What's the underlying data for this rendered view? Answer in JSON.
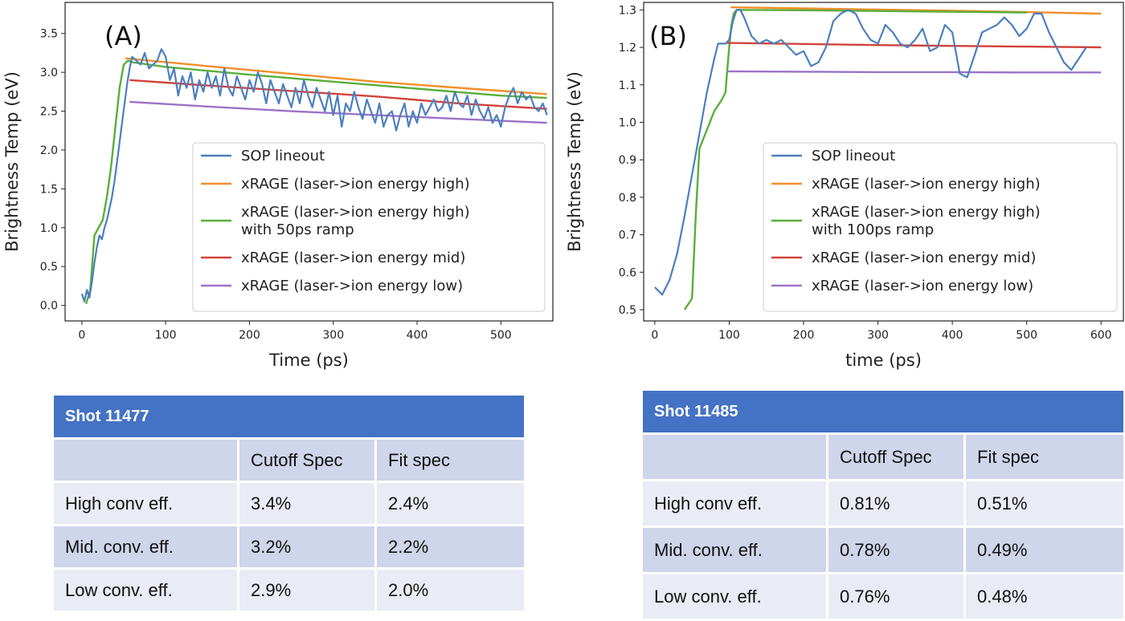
{
  "chart_data": [
    {
      "type": "line",
      "panel_label": "(A)",
      "xlabel": "Time (ps)",
      "ylabel": "Brightness Temp (eV)",
      "xlim": [
        -20,
        562
      ],
      "ylim": [
        -0.2,
        3.9
      ],
      "xticks": [
        0,
        100,
        200,
        300,
        400,
        500
      ],
      "yticks": [
        0.0,
        0.5,
        1.0,
        1.5,
        2.0,
        2.5,
        3.0,
        3.5
      ],
      "ytick_labels": [
        "0.0",
        "0.5",
        "1.0",
        "1.5",
        "2.0",
        "2.5",
        "3.0",
        "3.5"
      ],
      "legend_position": "lower-right",
      "series": [
        {
          "name": "SOP lineout",
          "color": "#4c7fbf",
          "x": [
            0,
            3,
            6,
            9,
            12,
            15,
            18,
            21,
            24,
            27,
            30,
            33,
            36,
            39,
            42,
            45,
            48,
            51,
            54,
            57,
            60,
            65,
            70,
            75,
            80,
            85,
            90,
            95,
            100,
            105,
            110,
            115,
            120,
            125,
            130,
            135,
            140,
            145,
            150,
            155,
            160,
            165,
            170,
            175,
            180,
            185,
            190,
            195,
            200,
            205,
            210,
            215,
            220,
            225,
            230,
            235,
            240,
            245,
            250,
            255,
            260,
            265,
            270,
            275,
            280,
            285,
            290,
            295,
            300,
            305,
            310,
            315,
            320,
            325,
            330,
            335,
            340,
            345,
            350,
            355,
            360,
            365,
            370,
            375,
            380,
            385,
            390,
            395,
            400,
            405,
            410,
            415,
            420,
            425,
            430,
            435,
            440,
            445,
            450,
            455,
            460,
            465,
            470,
            475,
            480,
            485,
            490,
            495,
            500,
            505,
            510,
            515,
            520,
            525,
            530,
            535,
            540,
            545,
            550,
            555
          ],
          "y": [
            0.15,
            0.05,
            0.2,
            0.1,
            0.3,
            0.55,
            0.75,
            0.9,
            0.85,
            1.0,
            1.1,
            1.25,
            1.4,
            1.6,
            1.85,
            2.1,
            2.35,
            2.6,
            2.85,
            3.05,
            3.2,
            3.15,
            3.1,
            3.25,
            3.05,
            3.1,
            3.15,
            3.3,
            3.2,
            2.9,
            3.05,
            2.7,
            2.95,
            2.8,
            3.0,
            2.65,
            2.9,
            2.75,
            3.0,
            2.8,
            2.95,
            2.7,
            3.05,
            2.8,
            2.7,
            2.95,
            2.8,
            2.65,
            2.9,
            2.75,
            3.0,
            2.85,
            2.6,
            2.9,
            2.75,
            2.6,
            2.85,
            2.7,
            2.55,
            2.8,
            2.6,
            2.9,
            2.7,
            2.55,
            2.8,
            2.65,
            2.5,
            2.75,
            2.45,
            2.7,
            2.3,
            2.6,
            2.5,
            2.75,
            2.55,
            2.4,
            2.65,
            2.5,
            2.35,
            2.6,
            2.3,
            2.45,
            2.5,
            2.25,
            2.45,
            2.6,
            2.3,
            2.5,
            2.35,
            2.6,
            2.45,
            2.55,
            2.65,
            2.5,
            2.55,
            2.7,
            2.5,
            2.75,
            2.6,
            2.55,
            2.7,
            2.45,
            2.65,
            2.5,
            2.4,
            2.55,
            2.35,
            2.45,
            2.3,
            2.55,
            2.7,
            2.8,
            2.6,
            2.75,
            2.65,
            2.7,
            2.55,
            2.5,
            2.6,
            2.45
          ]
        },
        {
          "name": "xRAGE (laser->ion energy high)",
          "color": "#f28e2b",
          "x": [
            52,
            150,
            250,
            350,
            450,
            555
          ],
          "y": [
            3.18,
            3.08,
            2.98,
            2.88,
            2.8,
            2.72
          ]
        },
        {
          "name": "xRAGE (laser->ion energy high)\n with 50ps ramp",
          "color": "#5aae3c",
          "x": [
            5,
            10,
            15,
            20,
            25,
            30,
            35,
            40,
            45,
            50,
            55,
            60,
            100,
            200,
            300,
            400,
            500,
            555
          ],
          "y": [
            0.02,
            0.2,
            0.9,
            1.0,
            1.1,
            1.4,
            1.8,
            2.3,
            2.8,
            3.1,
            3.15,
            3.13,
            3.07,
            2.97,
            2.88,
            2.79,
            2.7,
            2.67
          ]
        },
        {
          "name": "xRAGE (laser->ion energy mid)",
          "color": "#d2423a",
          "x": [
            57,
            150,
            250,
            350,
            450,
            555
          ],
          "y": [
            2.9,
            2.83,
            2.76,
            2.69,
            2.6,
            2.53
          ]
        },
        {
          "name": "xRAGE (laser->ion energy low)",
          "color": "#9a72c8",
          "x": [
            57,
            150,
            250,
            350,
            450,
            555
          ],
          "y": [
            2.62,
            2.56,
            2.5,
            2.45,
            2.4,
            2.35
          ]
        }
      ]
    },
    {
      "type": "line",
      "panel_label": "(B)",
      "xlabel": "time (ps)",
      "ylabel": "Brightness Temp (eV)",
      "xlim": [
        -15,
        630
      ],
      "ylim": [
        0.47,
        1.32
      ],
      "xticks": [
        0,
        100,
        200,
        300,
        400,
        500,
        600
      ],
      "yticks": [
        0.5,
        0.6,
        0.7,
        0.8,
        0.9,
        1.0,
        1.1,
        1.2,
        1.3
      ],
      "ytick_labels": [
        "0.5",
        "0.6",
        "0.7",
        "0.8",
        "0.9",
        "1.0",
        "1.1",
        "1.2",
        "1.3"
      ],
      "legend_position": "lower-right",
      "series": [
        {
          "name": "SOP lineout",
          "color": "#4c7fbf",
          "x": [
            0,
            10,
            20,
            30,
            40,
            50,
            60,
            70,
            80,
            85,
            90,
            95,
            100,
            105,
            110,
            115,
            120,
            130,
            140,
            150,
            160,
            170,
            180,
            190,
            200,
            210,
            220,
            230,
            240,
            250,
            260,
            270,
            280,
            290,
            300,
            310,
            320,
            330,
            340,
            350,
            360,
            370,
            380,
            390,
            400,
            410,
            420,
            430,
            440,
            450,
            460,
            470,
            480,
            490,
            500,
            510,
            520,
            530,
            540,
            550,
            560,
            570,
            580
          ],
          "y": [
            0.56,
            0.54,
            0.58,
            0.65,
            0.75,
            0.86,
            0.97,
            1.08,
            1.17,
            1.21,
            1.21,
            1.21,
            1.22,
            1.27,
            1.3,
            1.3,
            1.28,
            1.23,
            1.21,
            1.22,
            1.21,
            1.22,
            1.2,
            1.18,
            1.19,
            1.15,
            1.16,
            1.2,
            1.27,
            1.29,
            1.3,
            1.29,
            1.25,
            1.22,
            1.21,
            1.26,
            1.24,
            1.21,
            1.2,
            1.22,
            1.25,
            1.19,
            1.2,
            1.26,
            1.24,
            1.13,
            1.12,
            1.18,
            1.24,
            1.25,
            1.26,
            1.28,
            1.26,
            1.23,
            1.25,
            1.29,
            1.29,
            1.24,
            1.2,
            1.16,
            1.14,
            1.17,
            1.2
          ]
        },
        {
          "name": "xRAGE (laser->ion energy high)",
          "color": "#f28e2b",
          "x": [
            102,
            200,
            300,
            400,
            500,
            600
          ],
          "y": [
            1.307,
            1.304,
            1.301,
            1.298,
            1.294,
            1.29
          ]
        },
        {
          "name": "xRAGE (laser->ion energy high)\n with 100ps ramp",
          "color": "#5aae3c",
          "x": [
            40,
            50,
            55,
            60,
            70,
            80,
            90,
            95,
            100,
            103,
            106,
            110,
            200,
            300,
            400,
            500
          ],
          "y": [
            0.5,
            0.53,
            0.75,
            0.93,
            0.98,
            1.03,
            1.06,
            1.08,
            1.2,
            1.26,
            1.29,
            1.3,
            1.299,
            1.297,
            1.295,
            1.293
          ]
        },
        {
          "name": "xRAGE (laser->ion energy mid)",
          "color": "#d2423a",
          "x": [
            96,
            200,
            300,
            400,
            500,
            600
          ],
          "y": [
            1.212,
            1.209,
            1.206,
            1.204,
            1.202,
            1.2
          ]
        },
        {
          "name": "xRAGE (laser->ion energy low)",
          "color": "#9a72c8",
          "x": [
            98,
            200,
            300,
            400,
            500,
            600
          ],
          "y": [
            1.136,
            1.135,
            1.134,
            1.134,
            1.133,
            1.133
          ]
        }
      ]
    }
  ],
  "tables": {
    "A": {
      "title": "Shot 11477",
      "headers": [
        "",
        "Cutoff Spec",
        "Fit spec"
      ],
      "rows": [
        [
          "High conv eff.",
          "3.4%",
          "2.4%"
        ],
        [
          "Mid. conv. eff.",
          "3.2%",
          "2.2%"
        ],
        [
          "Low conv. eff.",
          "2.9%",
          "2.0%"
        ]
      ]
    },
    "B": {
      "title": "Shot 11485",
      "headers": [
        "",
        "Cutoff Spec",
        "Fit spec"
      ],
      "rows": [
        [
          "High conv eff.",
          "0.81%",
          "0.51%"
        ],
        [
          "Mid. conv. eff.",
          "0.78%",
          "0.49%"
        ],
        [
          "Low conv. eff.",
          "0.76%",
          "0.48%"
        ]
      ]
    }
  }
}
